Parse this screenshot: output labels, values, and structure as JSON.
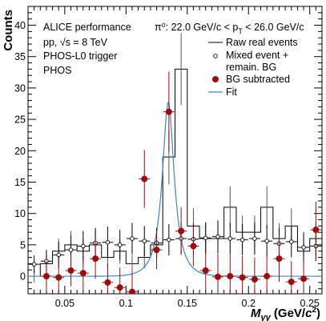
{
  "chart_data": {
    "type": "scatter",
    "title": "",
    "xlabel": "M_γγ (GeV/c²)",
    "ylabel": "Counts",
    "xlim": [
      0.02,
      0.26
    ],
    "ylim": [
      -2.8,
      43
    ],
    "x_ticks": [
      0.05,
      0.1,
      0.15,
      0.2,
      0.25
    ],
    "y_ticks": [
      0,
      5,
      10,
      15,
      20,
      25,
      30,
      35,
      40
    ],
    "annotations": {
      "lines": [
        "ALICE performance",
        "pp, √s = 8 TeV",
        "PHOS-L0 trigger",
        "PHOS"
      ],
      "range": "π⁰: 22.0 GeV/c < p_T < 26.0 GeV/c"
    },
    "legend_position": "top-right",
    "bin_edges": [
      0.02,
      0.03,
      0.04,
      0.05,
      0.06,
      0.07,
      0.08,
      0.09,
      0.1,
      0.11,
      0.12,
      0.13,
      0.14,
      0.15,
      0.16,
      0.17,
      0.18,
      0.19,
      0.2,
      0.21,
      0.22,
      0.23,
      0.24,
      0.25,
      0.26
    ],
    "series": [
      {
        "name": "Raw real events",
        "style": "histogram",
        "color": "#000000",
        "values": [
          0,
          2,
          4,
          5,
          4,
          5,
          3,
          4,
          2,
          3,
          5,
          19,
          33,
          8,
          6,
          6,
          11,
          7,
          7,
          11,
          6,
          8,
          4,
          6
        ]
      },
      {
        "name": "Mixed event + remain. BG",
        "style": "open-circle",
        "color": "#000000",
        "x": [
          0.025,
          0.035,
          0.045,
          0.055,
          0.065,
          0.075,
          0.085,
          0.095,
          0.105,
          0.115,
          0.125,
          0.135,
          0.145,
          0.155,
          0.165,
          0.175,
          0.185,
          0.195,
          0.205,
          0.215,
          0.225,
          0.235,
          0.245,
          0.255
        ],
        "y": [
          1.9,
          2.4,
          3.4,
          4.2,
          4.8,
          5.3,
          5.4,
          5.0,
          6.0,
          5.6,
          5.3,
          5.8,
          6.0,
          5.9,
          6.1,
          6.3,
          6.0,
          5.8,
          6.0,
          5.6,
          5.2,
          5.5,
          4.6,
          4.8
        ],
        "y_err": [
          1.4,
          1.8,
          2.1,
          2.3,
          2.4,
          2.4,
          2.5,
          2.4,
          2.5,
          2.4,
          2.4,
          2.5,
          2.5,
          2.5,
          2.5,
          2.6,
          2.5,
          2.5,
          2.6,
          2.5,
          2.5,
          2.5,
          2.4,
          2.4
        ]
      },
      {
        "name": "BG subtracted",
        "style": "filled-circle",
        "color": "#9b0d0d",
        "x": [
          0.035,
          0.045,
          0.055,
          0.065,
          0.075,
          0.085,
          0.095,
          0.105,
          0.115,
          0.125,
          0.135,
          0.145,
          0.155,
          0.165,
          0.175,
          0.185,
          0.195,
          0.205,
          0.215,
          0.225,
          0.235,
          0.245,
          0.255
        ],
        "y": [
          0.0,
          -0.2,
          0.9,
          0.5,
          2.8,
          -1.0,
          -1.8,
          -2.5,
          15.5,
          4.2,
          26.2,
          7.2,
          4.8,
          0.9,
          -0.1,
          0.0,
          -0.2,
          -0.5,
          0.0,
          2.8,
          -0.9,
          -0.4,
          7.4
        ],
        "y_err": [
          2.4,
          2.8,
          2.5,
          2.9,
          3.2,
          3.0,
          3.2,
          3.2,
          4.6,
          3.1,
          6.4,
          3.8,
          3.2,
          3.2,
          3.6,
          3.5,
          3.4,
          3.5,
          3.5,
          3.7,
          3.3,
          3.2,
          4.5
        ]
      },
      {
        "name": "Fit",
        "style": "line",
        "color": "#3a86c8",
        "peak_mean": 0.1345,
        "peak_amplitude": 27.7,
        "peak_width": 0.006
      }
    ]
  }
}
